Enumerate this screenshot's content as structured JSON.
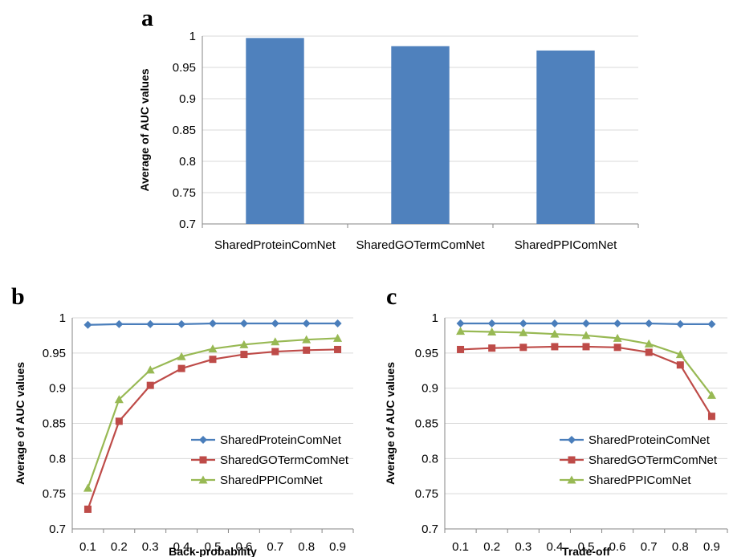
{
  "chart_data": [
    {
      "panel": "a",
      "type": "bar",
      "categories": [
        "SharedProteinComNet",
        "SharedGOTermComNet",
        "SharedPPIComNet"
      ],
      "values": [
        0.997,
        0.984,
        0.977
      ],
      "ylabel": "Average of AUC values",
      "xlabel": "",
      "ylim": [
        0.7,
        1
      ],
      "yticks": [
        "0.7",
        "0.75",
        "0.8",
        "0.85",
        "0.9",
        "0.95",
        "1"
      ],
      "color": "#4f81bd",
      "grid": true
    },
    {
      "panel": "b",
      "type": "line",
      "x": [
        "0.1",
        "0.2",
        "0.3",
        "0.4",
        "0.5",
        "0.6",
        "0.7",
        "0.8",
        "0.9"
      ],
      "series": [
        {
          "name": "SharedProteinComNet",
          "color": "#4a7ebb",
          "marker": "diamond",
          "values": [
            0.99,
            0.991,
            0.991,
            0.991,
            0.992,
            0.992,
            0.992,
            0.992,
            0.992
          ]
        },
        {
          "name": "SharedGOTermComNet",
          "color": "#be4b48",
          "marker": "square",
          "values": [
            0.728,
            0.853,
            0.904,
            0.928,
            0.941,
            0.948,
            0.952,
            0.954,
            0.955
          ]
        },
        {
          "name": "SharedPPIComNet",
          "color": "#98b954",
          "marker": "triangle",
          "values": [
            0.758,
            0.884,
            0.926,
            0.945,
            0.956,
            0.962,
            0.966,
            0.969,
            0.971
          ]
        }
      ],
      "xlabel": "Back-probability",
      "ylabel": "Average of AUC values",
      "ylim": [
        0.7,
        1
      ],
      "yticks": [
        "0.7",
        "0.75",
        "0.8",
        "0.85",
        "0.9",
        "0.95",
        "1"
      ],
      "legend": "bottom-right",
      "grid": true
    },
    {
      "panel": "c",
      "type": "line",
      "x": [
        "0.1",
        "0.2",
        "0.3",
        "0.4",
        "0.5",
        "0.6",
        "0.7",
        "0.8",
        "0.9"
      ],
      "series": [
        {
          "name": "SharedProteinComNet",
          "color": "#4a7ebb",
          "marker": "diamond",
          "values": [
            0.992,
            0.992,
            0.992,
            0.992,
            0.992,
            0.992,
            0.992,
            0.991,
            0.991
          ]
        },
        {
          "name": "SharedGOTermComNet",
          "color": "#be4b48",
          "marker": "square",
          "values": [
            0.955,
            0.957,
            0.958,
            0.959,
            0.959,
            0.958,
            0.951,
            0.933,
            0.86
          ]
        },
        {
          "name": "SharedPPIComNet",
          "color": "#98b954",
          "marker": "triangle",
          "values": [
            0.981,
            0.98,
            0.979,
            0.977,
            0.975,
            0.971,
            0.963,
            0.948,
            0.89
          ]
        }
      ],
      "xlabel": "Trade-off",
      "ylabel": "Average of AUC values",
      "ylim": [
        0.7,
        1
      ],
      "yticks": [
        "0.7",
        "0.75",
        "0.8",
        "0.85",
        "0.9",
        "0.95",
        "1"
      ],
      "legend": "bottom-right",
      "grid": true
    }
  ]
}
